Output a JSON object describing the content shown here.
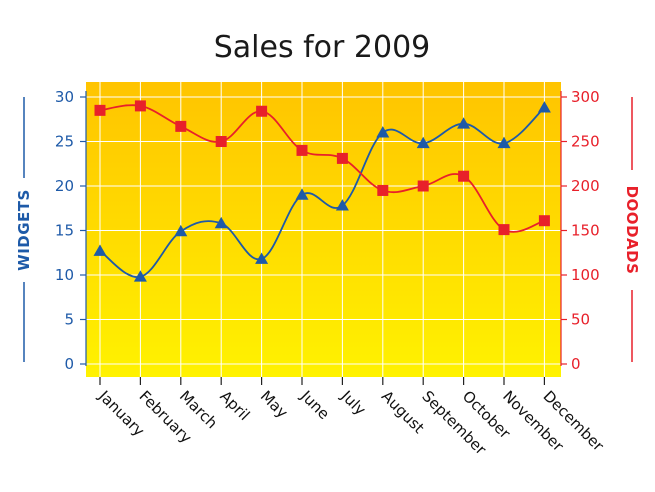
{
  "colors": {
    "widgets": "#1e5aa8",
    "doodads": "#e8202a",
    "plot_top": "#ffc400",
    "plot_bottom": "#fff200",
    "grid": "#ffffff"
  },
  "chart_data": {
    "type": "line",
    "title": "Sales for 2009",
    "categories": [
      "January",
      "February",
      "March",
      "April",
      "May",
      "June",
      "July",
      "August",
      "September",
      "October",
      "November",
      "December"
    ],
    "series": [
      {
        "name": "WIDGETS",
        "axis": "left",
        "marker": "triangle",
        "values": [
          12.7,
          9.8,
          14.9,
          15.8,
          11.8,
          19.0,
          17.8,
          26.0,
          24.8,
          27.0,
          24.8,
          28.8
        ]
      },
      {
        "name": "DOODADS",
        "axis": "right",
        "marker": "square",
        "values": [
          285,
          290,
          267,
          250,
          284,
          240,
          231,
          195,
          200,
          211,
          151,
          161
        ]
      }
    ],
    "left_axis": {
      "label": "WIDGETS",
      "range": [
        0,
        30
      ],
      "ticks": [
        "0",
        "5",
        "10",
        "15",
        "20",
        "25",
        "30"
      ]
    },
    "right_axis": {
      "label": "DOODADS",
      "range": [
        0,
        300
      ],
      "ticks": [
        "0",
        "50",
        "100",
        "150",
        "200",
        "250",
        "300"
      ]
    },
    "grid": true,
    "legend": "none"
  }
}
